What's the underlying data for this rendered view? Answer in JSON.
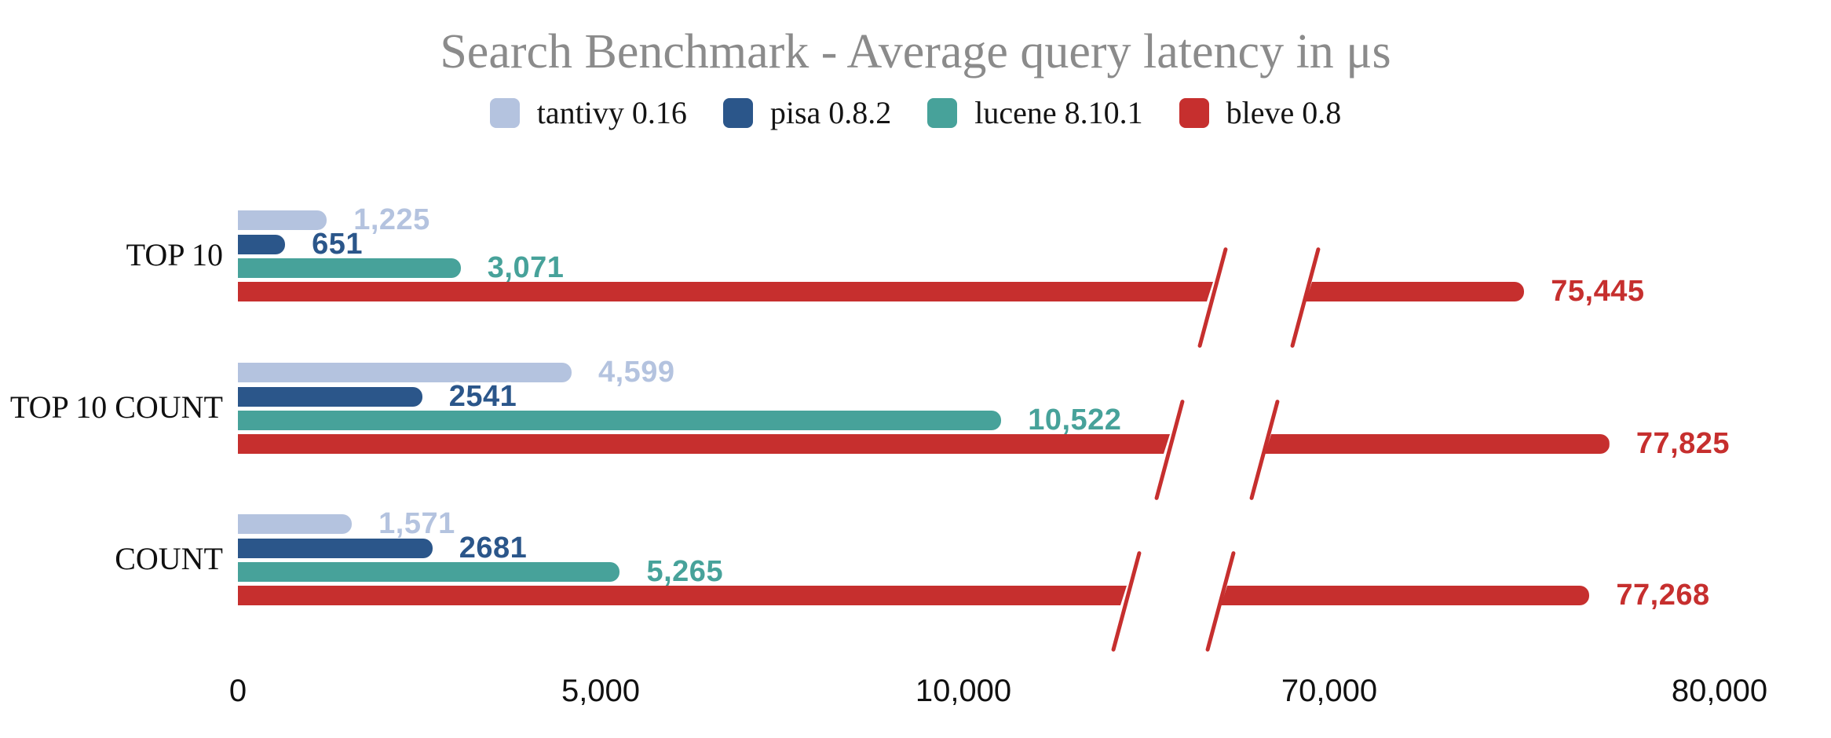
{
  "chart_data": {
    "type": "bar",
    "orientation": "horizontal",
    "title": "Search Benchmark - Average query latency in μs",
    "categories": [
      "TOP 10",
      "TOP 10 COUNT",
      "COUNT"
    ],
    "series": [
      {
        "name": "tantivy 0.16",
        "color": "#b4c3df",
        "values": [
          1225,
          4599,
          1571
        ],
        "value_labels": [
          "1,225",
          "4,599",
          "1,571"
        ]
      },
      {
        "name": "pisa 0.8.2",
        "color": "#2b568a",
        "values": [
          651,
          2541,
          2681
        ],
        "value_labels": [
          "651",
          "2541",
          "2681"
        ]
      },
      {
        "name": "lucene 8.10.1",
        "color": "#47a29a",
        "values": [
          3071,
          10522,
          5265
        ],
        "value_labels": [
          "3,071",
          "10,522",
          "5,265"
        ]
      },
      {
        "name": "bleve 0.8",
        "color": "#c62f2e",
        "values": [
          75445,
          77825,
          77268
        ],
        "value_labels": [
          "75,445",
          "77,825",
          "77,268"
        ]
      }
    ],
    "x_axis": {
      "tick_labels": [
        "0",
        "5,000",
        "10,000",
        "70,000",
        "80,000"
      ],
      "tick_values": [
        0,
        5000,
        10000,
        70000,
        80000
      ],
      "broken": true,
      "break_between": [
        10000,
        70000
      ]
    },
    "legend_position": "top",
    "grid": false,
    "background": "#ffffff",
    "title_color": "#8b8b8b"
  }
}
